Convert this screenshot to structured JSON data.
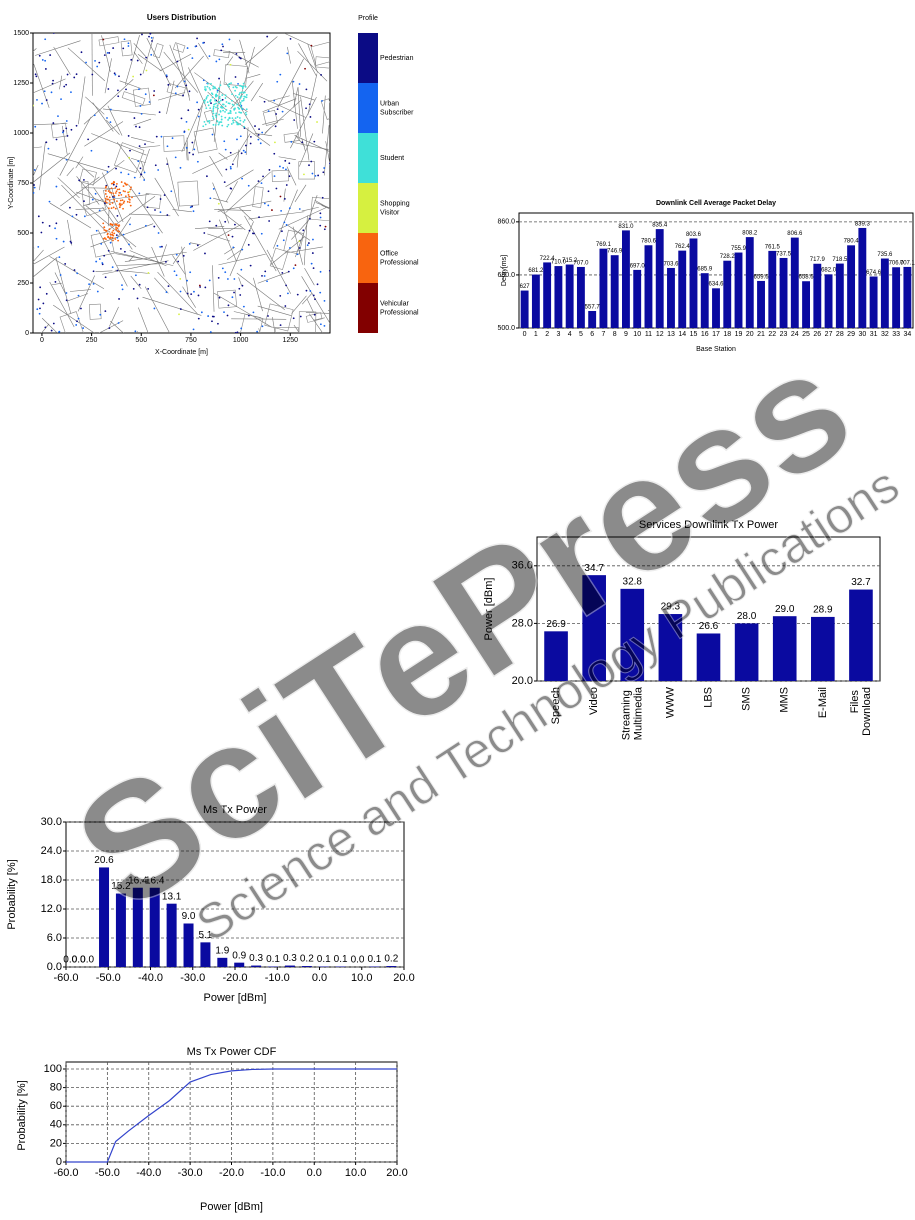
{
  "chart_data": [
    {
      "type": "map",
      "title": "Users Distribution",
      "xlabel": "X-Coordinate [m]",
      "ylabel": "Y-Coordinate [m]",
      "xlim": [
        -45,
        1450
      ],
      "ylim": [
        0,
        1500
      ],
      "xticks": [
        0,
        250,
        500,
        750,
        1000,
        1250
      ],
      "yticks": [
        0,
        250,
        500,
        750,
        1000,
        1250,
        1500
      ],
      "legend_title": "Profile",
      "series": [
        {
          "name": "Pedestrian",
          "color": "#0b0b85"
        },
        {
          "name": "Urban Subscriber",
          "color": "#1464f0"
        },
        {
          "name": "Student",
          "color": "#3fe0d8"
        },
        {
          "name": "Shopping Visitor",
          "color": "#d6f040"
        },
        {
          "name": "Office Professional",
          "color": "#f8640f"
        },
        {
          "name": "Vehicular Professional",
          "color": "#820000"
        }
      ]
    },
    {
      "type": "bar",
      "title": "Downlink Cell Average Packet Delay",
      "xlabel": "Base Station",
      "ylabel": "Delay[ms]",
      "categories": [
        "0",
        "1",
        "2",
        "3",
        "4",
        "5",
        "6",
        "7",
        "8",
        "9",
        "10",
        "11",
        "12",
        "13",
        "14",
        "15",
        "16",
        "17",
        "18",
        "19",
        "20",
        "21",
        "22",
        "23",
        "24",
        "25",
        "26",
        "27",
        "28",
        "29",
        "30",
        "31",
        "32",
        "33",
        "34"
      ],
      "values": [
        627,
        681.2,
        722.4,
        710.0,
        715.2,
        707.0,
        557.7,
        769.1,
        746.9,
        831.0,
        697.0,
        780.6,
        835.4,
        703.6,
        762.4,
        803.6,
        685.9,
        634.6,
        728.2,
        755.9,
        808.2,
        659.6,
        761.5,
        737.5,
        806.6,
        658.6,
        717.9,
        682.0,
        718.5,
        780.4,
        839.3,
        674.6,
        735.6,
        706.0,
        707.1
      ],
      "value_labels": [
        "627",
        "681.2",
        "722.4",
        "710.0",
        "715.2",
        "707.0",
        "557.7",
        "769.1",
        "746.9",
        "831.0",
        "697.0",
        "780.6",
        "835.4",
        "703.6",
        "762.4",
        "803.6",
        "685.9",
        "634.6",
        "728.2",
        "755.9",
        "808.2",
        "659.6",
        "761.5",
        "737.5",
        "806.6",
        "658.6",
        "717.9",
        "682.0",
        "718.5",
        "780.4",
        "839.3",
        "674.6",
        "735.6",
        "706.0",
        "707.1"
      ],
      "color": "#0a0aa0",
      "ylim": [
        500,
        890
      ],
      "yticks": [
        {
          "value": 500,
          "label": "500.0"
        },
        {
          "value": 680,
          "label": "680.0"
        },
        {
          "value": 860,
          "label": "860.0"
        }
      ],
      "grid": true
    },
    {
      "type": "bar",
      "title": "Services Downlink Tx Power",
      "ylabel": "Power [dBm]",
      "categories": [
        "Speech",
        "Video",
        "Streaming Multimedia",
        "WWW",
        "LBS",
        "SMS",
        "MMS",
        "E-Mail",
        "Files Download"
      ],
      "values": [
        26.9,
        34.7,
        32.8,
        29.3,
        26.6,
        28.0,
        29.0,
        28.9,
        32.7
      ],
      "value_labels": [
        "26.9",
        "34.7",
        "32.8",
        "29.3",
        "26.6",
        "28.0",
        "29.0",
        "28.9",
        "32.7"
      ],
      "color": "#0a0aa0",
      "ylim": [
        20,
        40
      ],
      "yticks": [
        {
          "value": 20,
          "label": "20.0"
        },
        {
          "value": 28,
          "label": "28.0"
        },
        {
          "value": 36,
          "label": "36.0"
        }
      ],
      "grid": true
    },
    {
      "type": "histogram",
      "title": "Ms Tx Power",
      "xlabel": "Power [dBm]",
      "ylabel": "Probability [%]",
      "x": [
        -59,
        -57,
        -55,
        -51,
        -47,
        -43,
        -39,
        -35,
        -31,
        -27,
        -23,
        -19,
        -15,
        -11,
        -7,
        -3,
        1,
        5,
        9,
        13,
        17
      ],
      "values": [
        0.0,
        0.0,
        0.0,
        20.6,
        15.2,
        16.4,
        16.4,
        13.1,
        9.0,
        5.1,
        1.9,
        0.9,
        0.3,
        0.1,
        0.3,
        0.2,
        0.1,
        0.1,
        0.0,
        0.1,
        0.2
      ],
      "value_labels": [
        "0.0",
        "0.0",
        "0.0",
        "20.6",
        "15.2",
        "16.4",
        "16.4",
        "13.1",
        "9.0",
        "5.1",
        "1.9",
        "0.9",
        "0.3",
        "0.1",
        "0.3",
        "0.2",
        "0.1",
        "0.1",
        "0.0",
        "0.1",
        "0.2"
      ],
      "color": "#0a0aa0",
      "xlim": [
        -60,
        20
      ],
      "ylim": [
        0,
        30
      ],
      "xticks": [
        {
          "value": -60,
          "label": "-60.0"
        },
        {
          "value": -50,
          "label": "-50.0"
        },
        {
          "value": -40,
          "label": "-40.0"
        },
        {
          "value": -30,
          "label": "-30.0"
        },
        {
          "value": -20,
          "label": "-20.0"
        },
        {
          "value": -10,
          "label": "-10.0"
        },
        {
          "value": 0,
          "label": "0.0"
        },
        {
          "value": 10,
          "label": "10.0"
        },
        {
          "value": 20,
          "label": "20.0"
        }
      ],
      "yticks": [
        {
          "value": 0,
          "label": "0.0"
        },
        {
          "value": 6,
          "label": "6.0"
        },
        {
          "value": 12,
          "label": "12.0"
        },
        {
          "value": 18,
          "label": "18.0"
        },
        {
          "value": 24,
          "label": "24.0"
        },
        {
          "value": 30,
          "label": "30.0"
        }
      ],
      "grid": true
    },
    {
      "type": "line",
      "title": "Ms Tx Power CDF",
      "xlabel": "Power [dBm]",
      "ylabel": "Probability [%]",
      "x": [
        -60,
        -50,
        -48,
        -45,
        -40,
        -35,
        -30,
        -25,
        -20,
        -15,
        -10,
        -4,
        20
      ],
      "values": [
        0,
        0,
        22,
        33,
        50,
        66,
        86,
        94,
        98,
        99.5,
        100,
        100,
        100
      ],
      "color": "#3344cc",
      "xlim": [
        -60,
        20
      ],
      "ylim": [
        0,
        100
      ],
      "xticks": [
        {
          "value": -60,
          "label": "-60.0"
        },
        {
          "value": -50,
          "label": "-50.0"
        },
        {
          "value": -40,
          "label": "-40.0"
        },
        {
          "value": -30,
          "label": "-30.0"
        },
        {
          "value": -20,
          "label": "-20.0"
        },
        {
          "value": -10,
          "label": "-10.0"
        },
        {
          "value": 0,
          "label": "0.0"
        },
        {
          "value": 10,
          "label": "10.0"
        },
        {
          "value": 20,
          "label": "20.0"
        }
      ],
      "yticks": [
        0,
        20,
        40,
        60,
        80,
        100
      ],
      "grid": true
    }
  ],
  "watermark": {
    "brand": "SciTePress",
    "tagline": "Science and Technology Publications"
  }
}
